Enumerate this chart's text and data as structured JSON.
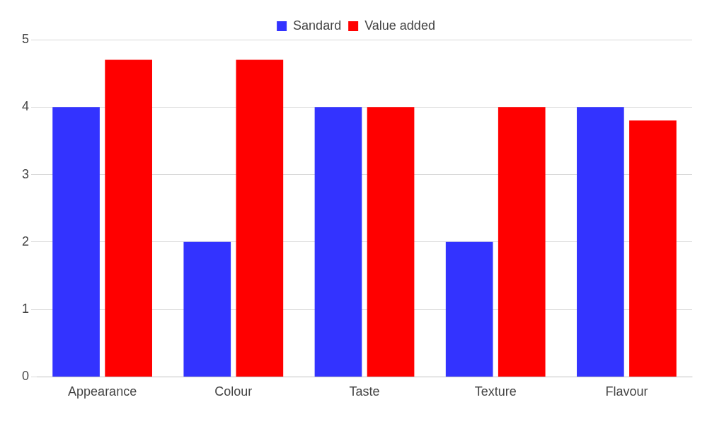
{
  "chart_data": {
    "type": "bar",
    "categories": [
      "Appearance",
      "Colour",
      "Taste",
      "Texture",
      "Flavour"
    ],
    "series": [
      {
        "name": "Sandard",
        "color": "#3333ff",
        "values": [
          4,
          2,
          4,
          2,
          4
        ]
      },
      {
        "name": "Value added",
        "color": "#ff0000",
        "values": [
          4.7,
          4.7,
          4,
          4,
          3.8
        ]
      }
    ],
    "ylim": [
      0,
      5
    ],
    "yticks": [
      0,
      1,
      2,
      3,
      4,
      5
    ],
    "grid": "y",
    "legend": "top"
  }
}
